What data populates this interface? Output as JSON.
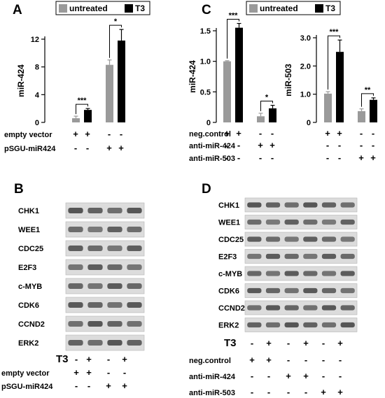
{
  "panels": {
    "A": "A",
    "B": "B",
    "C": "C",
    "D": "D"
  },
  "legend": {
    "untreated": "untreated",
    "t3": "T3"
  },
  "colors": {
    "untreated": "#9a9a9a",
    "t3": "#000000"
  },
  "chart_data": [
    {
      "type": "bar",
      "panel": "A",
      "ylabel": "miR-424",
      "ylim": [
        0,
        12
      ],
      "yticks": [
        "0",
        "4",
        "8",
        "12"
      ],
      "groups": [
        "empty vector",
        "pSGU-miR424"
      ],
      "series": [
        {
          "name": "untreated",
          "values": [
            0.6,
            8.3
          ],
          "errors": [
            0.3,
            0.7
          ]
        },
        {
          "name": "T3",
          "values": [
            1.8,
            11.8
          ],
          "errors": [
            0.2,
            1.6
          ]
        }
      ],
      "significance": [
        "***",
        "*"
      ],
      "conditions": [
        {
          "label": "empty vector",
          "signs": [
            "+",
            "+",
            "-",
            "-"
          ]
        },
        {
          "label": "pSGU-miR424",
          "signs": [
            "-",
            "-",
            "+",
            "+"
          ]
        }
      ]
    },
    {
      "type": "bar",
      "panel": "C-left",
      "ylabel": "miR-424",
      "ylim": [
        0,
        1.5
      ],
      "yticks": [
        "0",
        "0.5",
        "1.0",
        "1.5"
      ],
      "groups": [
        "neg.control",
        "anti-miR-424"
      ],
      "series": [
        {
          "name": "untreated",
          "values": [
            1.0,
            0.1
          ],
          "errors": [
            0.01,
            0.05
          ]
        },
        {
          "name": "T3",
          "values": [
            1.55,
            0.23
          ],
          "errors": [
            0.07,
            0.05
          ]
        }
      ],
      "significance": [
        "***",
        "*"
      ],
      "conditions": [
        {
          "label": "neg.control",
          "signs": [
            "+",
            "+",
            "-",
            "-"
          ]
        },
        {
          "label": "anti-miR-424",
          "signs": [
            "-",
            "-",
            "+",
            "+"
          ]
        },
        {
          "label": "anti-miR-503",
          "signs": [
            "-",
            "-",
            "-",
            "-"
          ]
        }
      ]
    },
    {
      "type": "bar",
      "panel": "C-right",
      "ylabel": "miR-503",
      "ylim": [
        0,
        3.0
      ],
      "yticks": [
        "0",
        "1.0",
        "2.0",
        "3.0"
      ],
      "groups": [
        "neg.control",
        "anti-miR-503"
      ],
      "series": [
        {
          "name": "untreated",
          "values": [
            1.02,
            0.4
          ],
          "errors": [
            0.07,
            0.08
          ]
        },
        {
          "name": "T3",
          "values": [
            2.5,
            0.8
          ],
          "errors": [
            0.42,
            0.07
          ]
        }
      ],
      "significance": [
        "***",
        "**"
      ],
      "conditions": [
        {
          "label": "neg.control",
          "signs": [
            "+",
            "+",
            "-",
            "-"
          ]
        },
        {
          "label": "anti-miR-424",
          "signs": [
            "-",
            "-",
            "-",
            "-"
          ]
        },
        {
          "label": "anti-miR-503",
          "signs": [
            "-",
            "-",
            "+",
            "+"
          ]
        }
      ]
    }
  ],
  "blot_B": {
    "proteins": [
      "CHK1",
      "WEE1",
      "CDC25",
      "E2F3",
      "c-MYB",
      "CDK6",
      "CCND2",
      "ERK2"
    ],
    "t3_label": "T3",
    "t3_signs": [
      "-",
      "+",
      "-",
      "+"
    ],
    "conditions": [
      {
        "label": "empty vector",
        "signs": [
          "+",
          "+",
          "-",
          "-"
        ]
      },
      {
        "label": "pSGU-miR424",
        "signs": [
          "-",
          "-",
          "+",
          "+"
        ]
      }
    ]
  },
  "blot_D": {
    "proteins": [
      "CHK1",
      "WEE1",
      "CDC25",
      "E2F3",
      "c-MYB",
      "CDK6",
      "CCND2",
      "ERK2"
    ],
    "t3_label": "T3",
    "t3_signs": [
      "-",
      "+",
      "-",
      "+",
      "-",
      "+"
    ],
    "conditions": [
      {
        "label": "neg.control",
        "signs": [
          "+",
          "+",
          "-",
          "-",
          "-",
          "-"
        ]
      },
      {
        "label": "anti-miR-424",
        "signs": [
          "-",
          "-",
          "+",
          "+",
          "-",
          "-"
        ]
      },
      {
        "label": "anti-miR-503",
        "signs": [
          "-",
          "-",
          "-",
          "-",
          "+",
          "+"
        ]
      }
    ]
  }
}
